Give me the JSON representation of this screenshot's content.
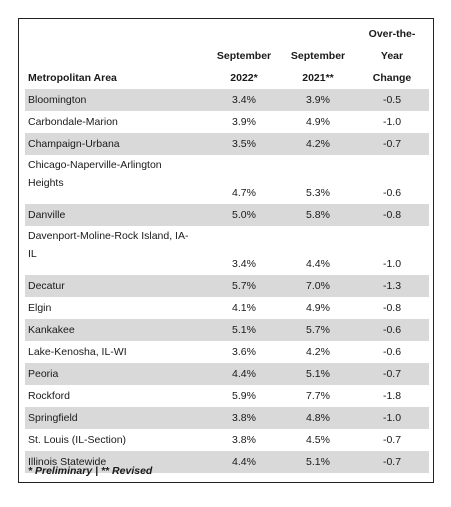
{
  "header": {
    "col1": "Metropolitan Area",
    "col2_line1": "September",
    "col2_line2": "2022*",
    "col3_line1": "September",
    "col3_line2": "2021**",
    "col4_line1": "Over-the-",
    "col4_line2": "Year",
    "col4_line3": "Change"
  },
  "rows": [
    {
      "area": "Bloomington",
      "sep2022": "3.4%",
      "sep2021": "3.9%",
      "change": "-0.5"
    },
    {
      "area": "Carbondale-Marion",
      "sep2022": "3.9%",
      "sep2021": "4.9%",
      "change": "-1.0"
    },
    {
      "area": "Champaign-Urbana",
      "sep2022": "3.5%",
      "sep2021": "4.2%",
      "change": "-0.7"
    },
    {
      "area_line1": "Chicago-Naperville-Arlington",
      "area_line2": "Heights",
      "sep2022": "4.7%",
      "sep2021": "5.3%",
      "change": "-0.6"
    },
    {
      "area": "Danville",
      "sep2022": "5.0%",
      "sep2021": "5.8%",
      "change": "-0.8"
    },
    {
      "area_line1": "Davenport-Moline-Rock Island, IA-",
      "area_line2": "IL",
      "sep2022": "3.4%",
      "sep2021": "4.4%",
      "change": "-1.0"
    },
    {
      "area": "Decatur",
      "sep2022": "5.7%",
      "sep2021": "7.0%",
      "change": "-1.3"
    },
    {
      "area": "Elgin",
      "sep2022": "4.1%",
      "sep2021": "4.9%",
      "change": "-0.8"
    },
    {
      "area": "Kankakee",
      "sep2022": "5.1%",
      "sep2021": "5.7%",
      "change": "-0.6"
    },
    {
      "area": "Lake-Kenosha, IL-WI",
      "sep2022": "3.6%",
      "sep2021": "4.2%",
      "change": "-0.6"
    },
    {
      "area": "Peoria",
      "sep2022": "4.4%",
      "sep2021": "5.1%",
      "change": "-0.7"
    },
    {
      "area": "Rockford",
      "sep2022": "5.9%",
      "sep2021": "7.7%",
      "change": "-1.8"
    },
    {
      "area": "Springfield",
      "sep2022": "3.8%",
      "sep2021": "4.8%",
      "change": "-1.0"
    },
    {
      "area": "St. Louis (IL-Section)",
      "sep2022": "3.8%",
      "sep2021": "4.5%",
      "change": "-0.7"
    },
    {
      "area": "Illinois Statewide",
      "sep2022": "4.4%",
      "sep2021": "5.1%",
      "change": "-0.7"
    }
  ],
  "footnote": "* Preliminary  |  ** Revised",
  "colors": {
    "shade": "#d9d9d9",
    "border": "#222222"
  }
}
